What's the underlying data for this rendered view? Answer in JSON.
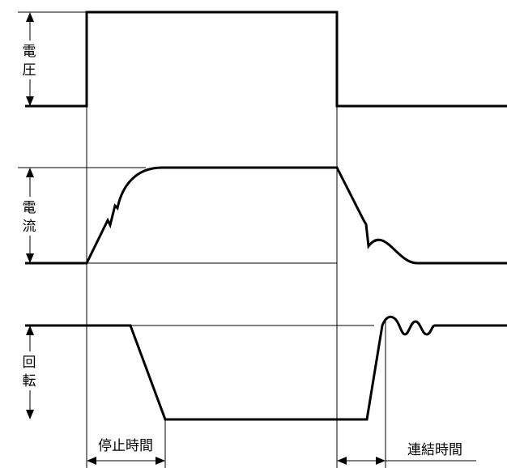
{
  "labels": {
    "voltage": [
      "電",
      "圧"
    ],
    "current": [
      "電",
      "流"
    ],
    "rotation": [
      "回",
      "転"
    ],
    "stop_time": "停止時間",
    "coupling_time": "連結時間"
  },
  "colors": {
    "line": "#000000",
    "background": "#ffffff"
  }
}
